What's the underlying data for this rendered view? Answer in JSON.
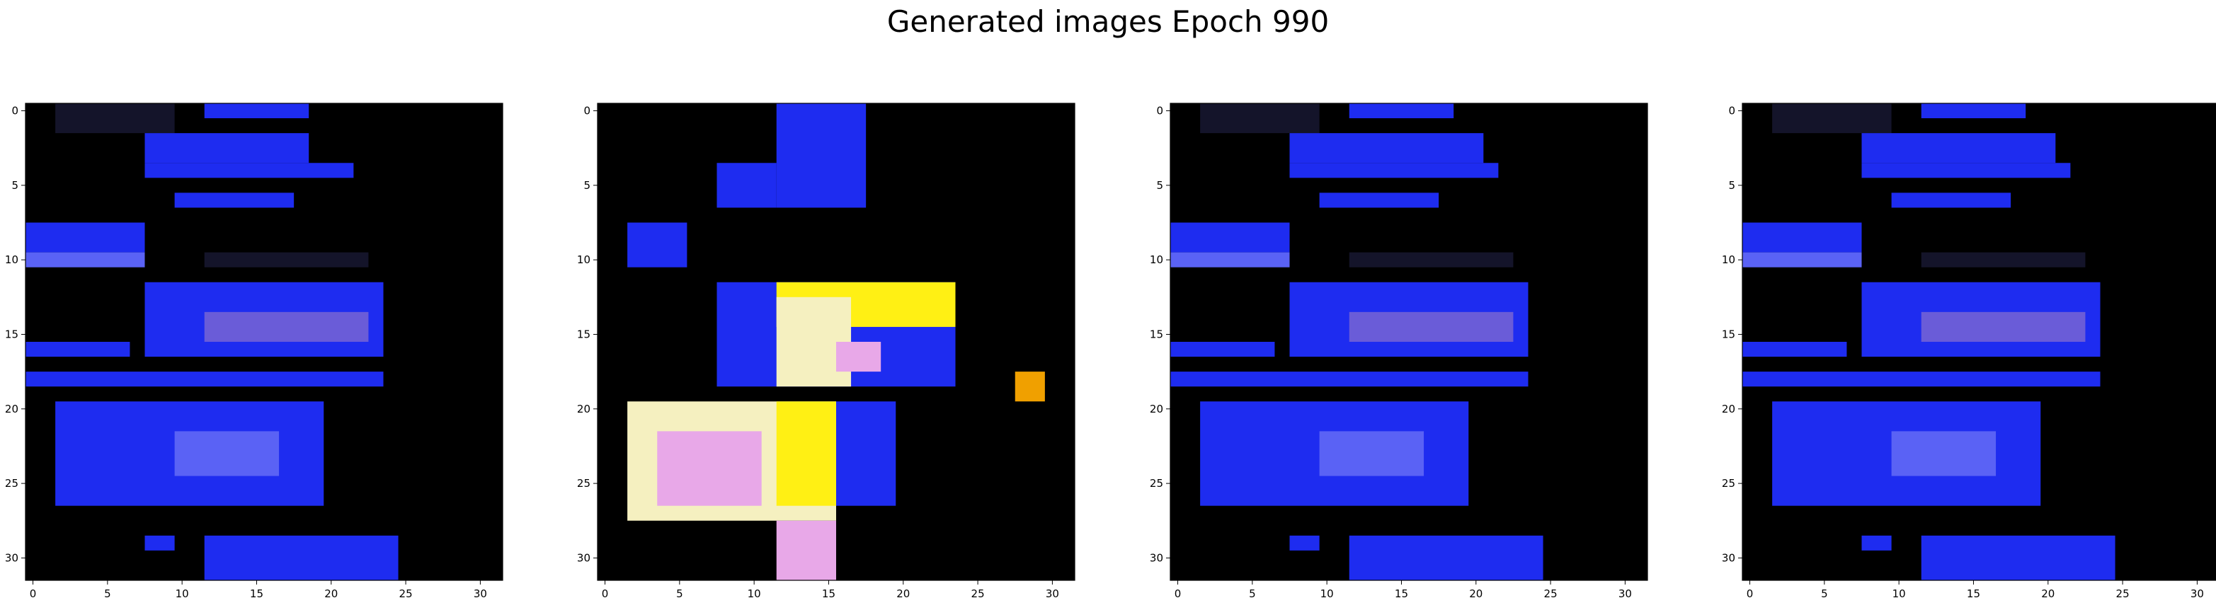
{
  "figure": {
    "title": "Generated images Epoch 990"
  },
  "chart_data": [
    {
      "type": "heatmap",
      "title": "",
      "xlabel": "",
      "ylabel": "",
      "grid": false,
      "shape": [
        32,
        32
      ],
      "xlim": [
        -0.5,
        31.5
      ],
      "ylim": [
        31.5,
        -0.5
      ],
      "xticks": [
        0,
        5,
        10,
        15,
        20,
        25,
        30
      ],
      "yticks": [
        0,
        5,
        10,
        15,
        20,
        25,
        30
      ],
      "palette": {
        "background": "#000000",
        "blue": "#1e2cf0",
        "blue_light": "#5a62f5",
        "purple": "#6a5cd8",
        "dim": "#14142a"
      },
      "regions": [
        {
          "rows": [
            0,
            1
          ],
          "cols": [
            2,
            9
          ],
          "tone": "dim"
        },
        {
          "rows": [
            0,
            0
          ],
          "cols": [
            12,
            18
          ],
          "tone": "blue"
        },
        {
          "rows": [
            2,
            3
          ],
          "cols": [
            8,
            18
          ],
          "tone": "blue"
        },
        {
          "rows": [
            4,
            4
          ],
          "cols": [
            8,
            21
          ],
          "tone": "blue"
        },
        {
          "rows": [
            6,
            6
          ],
          "cols": [
            10,
            17
          ],
          "tone": "blue"
        },
        {
          "rows": [
            8,
            9
          ],
          "cols": [
            0,
            7
          ],
          "tone": "blue"
        },
        {
          "rows": [
            10,
            10
          ],
          "cols": [
            0,
            7
          ],
          "tone": "blue_light"
        },
        {
          "rows": [
            10,
            10
          ],
          "cols": [
            12,
            22
          ],
          "tone": "dim"
        },
        {
          "rows": [
            12,
            16
          ],
          "cols": [
            8,
            23
          ],
          "tone": "blue"
        },
        {
          "rows": [
            14,
            15
          ],
          "cols": [
            12,
            22
          ],
          "tone": "purple"
        },
        {
          "rows": [
            16,
            16
          ],
          "cols": [
            0,
            6
          ],
          "tone": "blue"
        },
        {
          "rows": [
            18,
            18
          ],
          "cols": [
            0,
            23
          ],
          "tone": "blue"
        },
        {
          "rows": [
            20,
            26
          ],
          "cols": [
            2,
            19
          ],
          "tone": "blue"
        },
        {
          "rows": [
            22,
            24
          ],
          "cols": [
            10,
            16
          ],
          "tone": "blue_light"
        },
        {
          "rows": [
            29,
            29
          ],
          "cols": [
            8,
            9
          ],
          "tone": "blue"
        },
        {
          "rows": [
            29,
            31
          ],
          "cols": [
            12,
            24
          ],
          "tone": "blue"
        }
      ]
    },
    {
      "type": "heatmap",
      "title": "",
      "xlabel": "",
      "ylabel": "",
      "grid": false,
      "shape": [
        32,
        32
      ],
      "xlim": [
        -0.5,
        31.5
      ],
      "ylim": [
        31.5,
        -0.5
      ],
      "xticks": [
        0,
        5,
        10,
        15,
        20,
        25,
        30
      ],
      "yticks": [
        0,
        5,
        10,
        15,
        20,
        25,
        30
      ],
      "palette": {
        "background": "#000000",
        "blue": "#1e2cf0",
        "yellow": "#fff014",
        "cream": "#f5f0c0",
        "pink": "#e8a8e8",
        "orange": "#f0a000"
      },
      "regions": [
        {
          "rows": [
            0,
            6
          ],
          "cols": [
            12,
            17
          ],
          "tone": "blue"
        },
        {
          "rows": [
            4,
            6
          ],
          "cols": [
            8,
            11
          ],
          "tone": "blue"
        },
        {
          "rows": [
            8,
            10
          ],
          "cols": [
            2,
            5
          ],
          "tone": "blue"
        },
        {
          "rows": [
            12,
            18
          ],
          "cols": [
            8,
            23
          ],
          "tone": "blue"
        },
        {
          "rows": [
            12,
            14
          ],
          "cols": [
            12,
            23
          ],
          "tone": "yellow"
        },
        {
          "rows": [
            13,
            18
          ],
          "cols": [
            12,
            16
          ],
          "tone": "cream"
        },
        {
          "rows": [
            16,
            17
          ],
          "cols": [
            16,
            18
          ],
          "tone": "pink"
        },
        {
          "rows": [
            18,
            19
          ],
          "cols": [
            28,
            29
          ],
          "tone": "orange"
        },
        {
          "rows": [
            20,
            27
          ],
          "cols": [
            2,
            15
          ],
          "tone": "cream"
        },
        {
          "rows": [
            20,
            26
          ],
          "cols": [
            12,
            15
          ],
          "tone": "yellow"
        },
        {
          "rows": [
            22,
            26
          ],
          "cols": [
            4,
            10
          ],
          "tone": "pink"
        },
        {
          "rows": [
            20,
            26
          ],
          "cols": [
            16,
            19
          ],
          "tone": "blue"
        },
        {
          "rows": [
            28,
            31
          ],
          "cols": [
            12,
            15
          ],
          "tone": "pink"
        }
      ]
    },
    {
      "type": "heatmap",
      "title": "",
      "xlabel": "",
      "ylabel": "",
      "grid": false,
      "shape": [
        32,
        32
      ],
      "xlim": [
        -0.5,
        31.5
      ],
      "ylim": [
        31.5,
        -0.5
      ],
      "xticks": [
        0,
        5,
        10,
        15,
        20,
        25,
        30
      ],
      "yticks": [
        0,
        5,
        10,
        15,
        20,
        25,
        30
      ],
      "palette": {
        "background": "#000000",
        "blue": "#1e2cf0",
        "blue_light": "#5a62f5",
        "purple": "#6a5cd8",
        "dim": "#14142a"
      },
      "regions": [
        {
          "rows": [
            0,
            1
          ],
          "cols": [
            2,
            9
          ],
          "tone": "dim"
        },
        {
          "rows": [
            0,
            0
          ],
          "cols": [
            12,
            18
          ],
          "tone": "blue"
        },
        {
          "rows": [
            2,
            3
          ],
          "cols": [
            8,
            20
          ],
          "tone": "blue"
        },
        {
          "rows": [
            4,
            4
          ],
          "cols": [
            8,
            21
          ],
          "tone": "blue"
        },
        {
          "rows": [
            6,
            6
          ],
          "cols": [
            10,
            17
          ],
          "tone": "blue"
        },
        {
          "rows": [
            8,
            9
          ],
          "cols": [
            0,
            7
          ],
          "tone": "blue"
        },
        {
          "rows": [
            10,
            10
          ],
          "cols": [
            0,
            7
          ],
          "tone": "blue_light"
        },
        {
          "rows": [
            10,
            10
          ],
          "cols": [
            12,
            22
          ],
          "tone": "dim"
        },
        {
          "rows": [
            12,
            16
          ],
          "cols": [
            8,
            23
          ],
          "tone": "blue"
        },
        {
          "rows": [
            14,
            15
          ],
          "cols": [
            12,
            22
          ],
          "tone": "purple"
        },
        {
          "rows": [
            16,
            16
          ],
          "cols": [
            0,
            6
          ],
          "tone": "blue"
        },
        {
          "rows": [
            18,
            18
          ],
          "cols": [
            0,
            23
          ],
          "tone": "blue"
        },
        {
          "rows": [
            20,
            26
          ],
          "cols": [
            2,
            19
          ],
          "tone": "blue"
        },
        {
          "rows": [
            22,
            24
          ],
          "cols": [
            10,
            16
          ],
          "tone": "blue_light"
        },
        {
          "rows": [
            29,
            29
          ],
          "cols": [
            8,
            9
          ],
          "tone": "blue"
        },
        {
          "rows": [
            29,
            31
          ],
          "cols": [
            12,
            24
          ],
          "tone": "blue"
        }
      ]
    },
    {
      "type": "heatmap",
      "title": "",
      "xlabel": "",
      "ylabel": "",
      "grid": false,
      "shape": [
        32,
        32
      ],
      "xlim": [
        -0.5,
        31.5
      ],
      "ylim": [
        31.5,
        -0.5
      ],
      "xticks": [
        0,
        5,
        10,
        15,
        20,
        25,
        30
      ],
      "yticks": [
        0,
        5,
        10,
        15,
        20,
        25,
        30
      ],
      "palette": {
        "background": "#000000",
        "blue": "#1e2cf0",
        "blue_light": "#5a62f5",
        "purple": "#6a5cd8",
        "dim": "#14142a"
      },
      "regions": [
        {
          "rows": [
            0,
            1
          ],
          "cols": [
            2,
            9
          ],
          "tone": "dim"
        },
        {
          "rows": [
            0,
            0
          ],
          "cols": [
            12,
            18
          ],
          "tone": "blue"
        },
        {
          "rows": [
            2,
            3
          ],
          "cols": [
            8,
            20
          ],
          "tone": "blue"
        },
        {
          "rows": [
            4,
            4
          ],
          "cols": [
            8,
            21
          ],
          "tone": "blue"
        },
        {
          "rows": [
            6,
            6
          ],
          "cols": [
            10,
            17
          ],
          "tone": "blue"
        },
        {
          "rows": [
            8,
            9
          ],
          "cols": [
            0,
            7
          ],
          "tone": "blue"
        },
        {
          "rows": [
            10,
            10
          ],
          "cols": [
            0,
            7
          ],
          "tone": "blue_light"
        },
        {
          "rows": [
            10,
            10
          ],
          "cols": [
            12,
            22
          ],
          "tone": "dim"
        },
        {
          "rows": [
            12,
            16
          ],
          "cols": [
            8,
            23
          ],
          "tone": "blue"
        },
        {
          "rows": [
            14,
            15
          ],
          "cols": [
            12,
            22
          ],
          "tone": "purple"
        },
        {
          "rows": [
            16,
            16
          ],
          "cols": [
            0,
            6
          ],
          "tone": "blue"
        },
        {
          "rows": [
            18,
            18
          ],
          "cols": [
            0,
            23
          ],
          "tone": "blue"
        },
        {
          "rows": [
            20,
            26
          ],
          "cols": [
            2,
            19
          ],
          "tone": "blue"
        },
        {
          "rows": [
            22,
            24
          ],
          "cols": [
            10,
            16
          ],
          "tone": "blue_light"
        },
        {
          "rows": [
            29,
            29
          ],
          "cols": [
            8,
            9
          ],
          "tone": "blue"
        },
        {
          "rows": [
            29,
            31
          ],
          "cols": [
            12,
            24
          ],
          "tone": "blue"
        }
      ]
    }
  ]
}
